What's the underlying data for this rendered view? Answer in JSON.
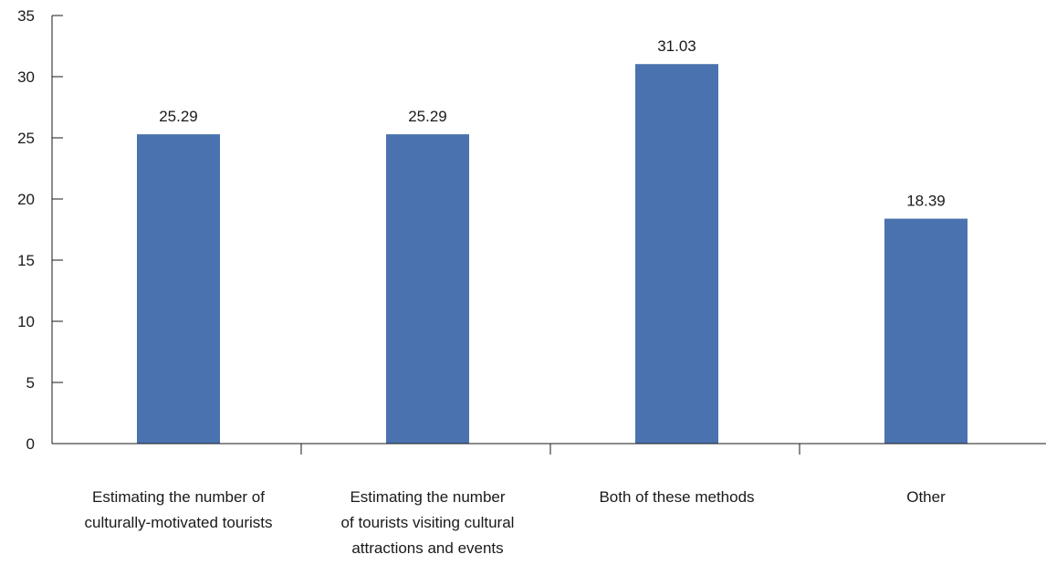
{
  "chart_data": {
    "type": "bar",
    "categories": [
      [
        "Estimating the number of",
        "culturally-motivated tourists"
      ],
      [
        "Estimating the number",
        "of tourists visiting cultural",
        "attractions and events"
      ],
      [
        "Both of these methods"
      ],
      [
        "Other"
      ]
    ],
    "values": [
      25.29,
      25.29,
      31.03,
      18.39
    ],
    "data_labels": [
      "25.29",
      "25.29",
      "31.03",
      "18.39"
    ],
    "ylim": [
      0,
      35
    ],
    "yticks": [
      0,
      5,
      10,
      15,
      20,
      25,
      30,
      35
    ],
    "title": "",
    "xlabel": "",
    "ylabel": "",
    "grid": false,
    "legend": "none",
    "bar_color": "#4a72af"
  }
}
